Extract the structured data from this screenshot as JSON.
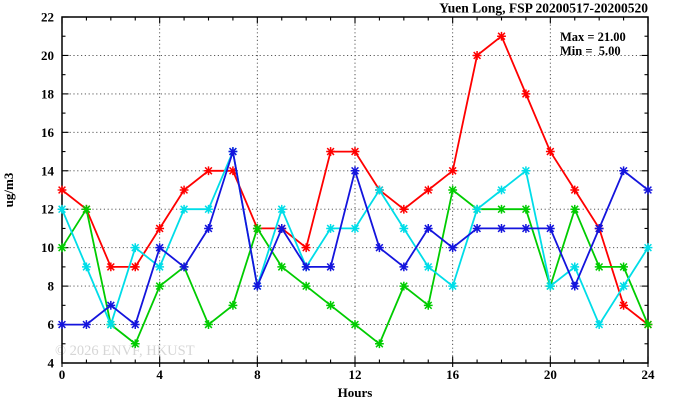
{
  "window": {
    "title": "Yuen Long, FSP 20200517-20200520"
  },
  "watermark": {
    "text": "© 2026 ENVF, HKUST",
    "color": "#d6d6d6"
  },
  "annotation": {
    "max_label": "Max = 21.00",
    "min_label": "Min =  5.00"
  },
  "chart_data": {
    "type": "line",
    "title": "Yuen Long, FSP 20200517-20200520",
    "xlabel": "Hours",
    "ylabel": "ug/m3",
    "xlim": [
      0,
      24
    ],
    "ylim": [
      4,
      22
    ],
    "x_major_ticks": [
      0,
      4,
      8,
      12,
      16,
      20,
      24
    ],
    "y_major_ticks": [
      4,
      6,
      8,
      10,
      12,
      14,
      16,
      18,
      20,
      22
    ],
    "x_minor_step": 1,
    "y_minor_step": 1,
    "grid": "dotted at major ticks",
    "legend_position": "none",
    "x": [
      0,
      1,
      2,
      3,
      4,
      5,
      6,
      7,
      8,
      9,
      10,
      11,
      12,
      13,
      14,
      15,
      16,
      17,
      18,
      19,
      20,
      21,
      22,
      23,
      24
    ],
    "series": [
      {
        "name": "series-red",
        "color": "#ff0000",
        "values": [
          13,
          12,
          9,
          9,
          11,
          13,
          14,
          14,
          11,
          11,
          10,
          15,
          15,
          13,
          12,
          13,
          14,
          20,
          21,
          18,
          15,
          13,
          11,
          7,
          6
        ]
      },
      {
        "name": "series-green",
        "color": "#00cc00",
        "values": [
          10,
          12,
          6,
          5,
          8,
          9,
          6,
          7,
          11,
          9,
          8,
          7,
          6,
          5,
          8,
          7,
          13,
          12,
          12,
          12,
          8,
          12,
          9,
          9,
          6
        ]
      },
      {
        "name": "series-cyan",
        "color": "#00dde8",
        "values": [
          12,
          9,
          6,
          10,
          9,
          12,
          12,
          15,
          8,
          12,
          9,
          11,
          11,
          13,
          11,
          9,
          8,
          12,
          13,
          14,
          8,
          9,
          6,
          8,
          10
        ]
      },
      {
        "name": "series-blue",
        "color": "#1414dd",
        "values": [
          6,
          6,
          7,
          6,
          10,
          9,
          11,
          15,
          8,
          11,
          9,
          9,
          14,
          10,
          9,
          11,
          10,
          11,
          11,
          11,
          11,
          8,
          11,
          14,
          13
        ]
      }
    ],
    "stats": {
      "max": 21.0,
      "min": 5.0
    },
    "axis_color": "#000000"
  }
}
